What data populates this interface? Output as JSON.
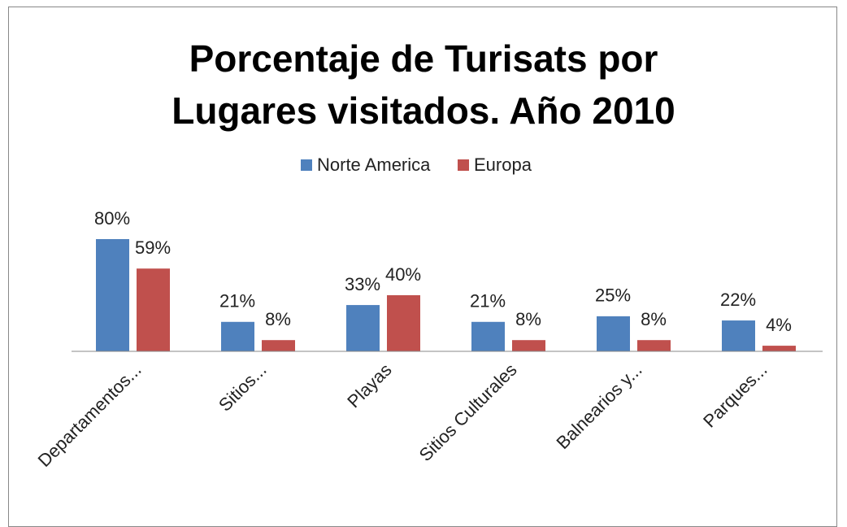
{
  "chart_data": {
    "type": "bar",
    "title": "Porcentaje de Turisats por Lugares visitados. Año 2010",
    "categories": [
      "Departamentos...",
      "Sitios...",
      "Playas",
      "Sitios Culturales",
      "Balnearios y...",
      "Parques..."
    ],
    "series": [
      {
        "name": "Norte America",
        "color": "#4f81bd",
        "values": [
          80,
          21,
          33,
          21,
          25,
          22
        ],
        "value_labels": [
          "80%",
          "21%",
          "33%",
          "21%",
          "25%",
          "22%"
        ]
      },
      {
        "name": "Europa",
        "color": "#c0504d",
        "values": [
          59,
          8,
          40,
          8,
          8,
          4
        ],
        "value_labels": [
          "59%",
          "8%",
          "40%",
          "8%",
          "8%",
          "4%"
        ]
      }
    ],
    "legend": "top"
  }
}
